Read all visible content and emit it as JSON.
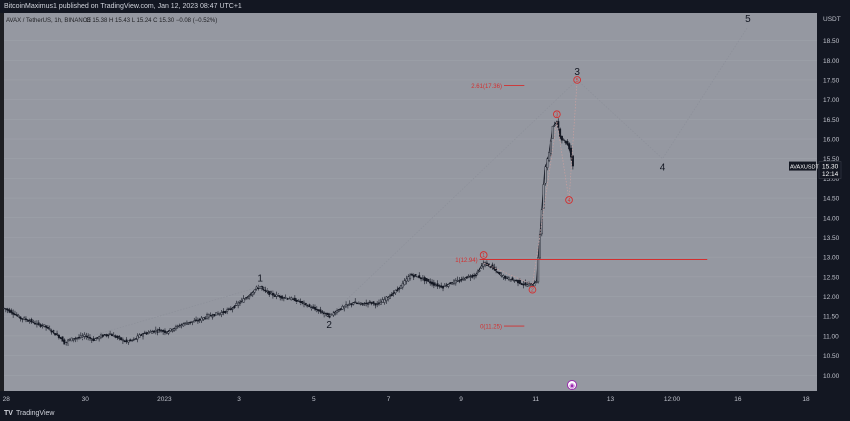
{
  "header": {
    "publisher_text": "BitcoinMaximus1 published on TradingView.com, Jan 12, 2023 08:47 UTC+1"
  },
  "footer": {
    "logo_glyph": "TV",
    "brand": "TradingView"
  },
  "chart_data": {
    "type": "candlestick",
    "title": "AVAX / TetherUS, 1h, BINANCE",
    "ohlc": "O 15.38 H 15.43 L 15.24 C 15.30 −0.08 (−0.52%)",
    "currency": "USDT",
    "symbol_tag": "AVAXUSDT",
    "last_price": "15.30",
    "countdown": "12:14",
    "x_tick_labels": [
      "28",
      "30",
      "2023",
      "3",
      "5",
      "7",
      "9",
      "11",
      "13",
      "12:00",
      "16",
      "18"
    ],
    "y_tick_labels": [
      "10.00",
      "10.50",
      "11.00",
      "11.50",
      "12.00",
      "12.50",
      "13.00",
      "13.50",
      "14.00",
      "14.50",
      "15.00",
      "15.50",
      "16.00",
      "16.50",
      "17.00",
      "17.50",
      "18.00",
      "18.50"
    ],
    "ylim": [
      9.6,
      19.2
    ],
    "price_path": [
      [
        0,
        11.7
      ],
      [
        2,
        11.6
      ],
      [
        4,
        11.45
      ],
      [
        6,
        11.4
      ],
      [
        8,
        11.3
      ],
      [
        10,
        11.25
      ],
      [
        12,
        11.1
      ],
      [
        14,
        10.95
      ],
      [
        15,
        10.8
      ],
      [
        16,
        10.9
      ],
      [
        18,
        10.95
      ],
      [
        20,
        11.0
      ],
      [
        22,
        10.9
      ],
      [
        24,
        11.0
      ],
      [
        26,
        11.05
      ],
      [
        28,
        10.95
      ],
      [
        30,
        10.85
      ],
      [
        32,
        10.9
      ],
      [
        34,
        11.05
      ],
      [
        36,
        11.1
      ],
      [
        38,
        11.15
      ],
      [
        40,
        11.1
      ],
      [
        42,
        11.2
      ],
      [
        44,
        11.3
      ],
      [
        46,
        11.35
      ],
      [
        48,
        11.4
      ],
      [
        50,
        11.5
      ],
      [
        52,
        11.55
      ],
      [
        54,
        11.6
      ],
      [
        56,
        11.7
      ],
      [
        58,
        11.85
      ],
      [
        60,
        12.0
      ],
      [
        62,
        12.2
      ],
      [
        63,
        12.25
      ],
      [
        64,
        12.15
      ],
      [
        66,
        12.05
      ],
      [
        68,
        12.0
      ],
      [
        70,
        11.95
      ],
      [
        72,
        11.9
      ],
      [
        74,
        11.8
      ],
      [
        76,
        11.7
      ],
      [
        78,
        11.6
      ],
      [
        80,
        11.5
      ],
      [
        82,
        11.65
      ],
      [
        84,
        11.75
      ],
      [
        86,
        11.85
      ],
      [
        88,
        11.8
      ],
      [
        90,
        11.85
      ],
      [
        92,
        11.8
      ],
      [
        94,
        11.95
      ],
      [
        96,
        12.1
      ],
      [
        98,
        12.3
      ],
      [
        100,
        12.55
      ],
      [
        102,
        12.5
      ],
      [
        104,
        12.4
      ],
      [
        106,
        12.3
      ],
      [
        108,
        12.25
      ],
      [
        110,
        12.35
      ],
      [
        112,
        12.4
      ],
      [
        114,
        12.5
      ],
      [
        116,
        12.55
      ],
      [
        118,
        12.85
      ],
      [
        120,
        12.75
      ],
      [
        122,
        12.55
      ],
      [
        124,
        12.45
      ],
      [
        126,
        12.4
      ],
      [
        128,
        12.3
      ],
      [
        130,
        12.3
      ],
      [
        131,
        12.4
      ],
      [
        132,
        13.8
      ],
      [
        133,
        15.2
      ],
      [
        134,
        15.6
      ],
      [
        135,
        16.3
      ],
      [
        136,
        16.45
      ],
      [
        137,
        16.0
      ],
      [
        138,
        15.95
      ],
      [
        139,
        15.8
      ],
      [
        140,
        15.3
      ]
    ],
    "x_range": [
      0,
      200
    ],
    "elliott_main": {
      "points": [
        [
          15,
          10.8
        ],
        [
          63,
          12.25
        ],
        [
          80,
          11.5
        ],
        [
          141,
          17.5
        ],
        [
          162,
          15.5
        ],
        [
          183,
          18.85
        ]
      ],
      "labels": [
        {
          "x": 63,
          "y": 12.25,
          "text": "1"
        },
        {
          "x": 80,
          "y": 11.5,
          "text": "2"
        },
        {
          "x": 141,
          "y": 17.5,
          "text": "3"
        },
        {
          "x": 162,
          "y": 15.5,
          "text": "4"
        },
        {
          "x": 183,
          "y": 18.85,
          "text": "5"
        }
      ]
    },
    "elliott_sub": {
      "points": [
        [
          118,
          12.85
        ],
        [
          130,
          12.3
        ],
        [
          136,
          16.45
        ],
        [
          139,
          14.45
        ],
        [
          141,
          17.5
        ]
      ],
      "labels": [
        {
          "x": 118,
          "y": 12.85,
          "text": "1"
        },
        {
          "x": 130,
          "y": 12.3,
          "text": "2"
        },
        {
          "x": 136,
          "y": 16.45,
          "text": "3"
        },
        {
          "x": 139,
          "y": 14.45,
          "text": "4"
        },
        {
          "x": 141,
          "y": 17.5,
          "text": "5"
        }
      ]
    },
    "fib_levels": [
      {
        "label": "2.61(17.36)",
        "value": 17.36,
        "x_from": 123,
        "x_to": 128
      },
      {
        "label": "1(12.94)",
        "value": 12.94,
        "x_from": 117,
        "x_to": 173
      },
      {
        "label": "0(11.25)",
        "value": 11.25,
        "x_from": 123,
        "x_to": 128
      }
    ],
    "bottom_marker": "◉",
    "colors": {
      "plot_bg": "#9598a1",
      "candle": "#131722",
      "wave": "#131722",
      "sub_wave": "#d32f2f",
      "fib": "#d32f2f",
      "axis_bg": "#131722",
      "axis_text": "#c0c3cc",
      "tag_bg": "#131722",
      "path_line": "#8d909a"
    }
  }
}
